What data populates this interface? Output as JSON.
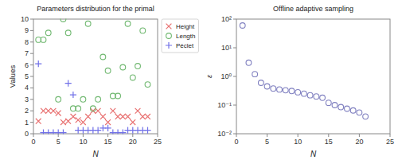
{
  "chart_data": [
    {
      "type": "scatter",
      "title": "Parameters distribution for the primal",
      "x_label": "N",
      "y_label": "Values",
      "xlim": [
        0,
        25
      ],
      "ylim": [
        0,
        10
      ],
      "xticks": [
        0,
        5,
        10,
        15,
        20,
        25
      ],
      "yticks": [
        0,
        1,
        2,
        3,
        4,
        5,
        6,
        7,
        8,
        9,
        10
      ],
      "grid": false,
      "legend": "upper right",
      "series": [
        {
          "name": "Height",
          "color": "#e87070",
          "marker": "x",
          "x": [
            1,
            2,
            3,
            4,
            5,
            6,
            7,
            8,
            9,
            10,
            11,
            12,
            13,
            14,
            15,
            16,
            17,
            18,
            19,
            20,
            21,
            22,
            23
          ],
          "values": [
            1.1,
            2.0,
            2.0,
            2.0,
            1.8,
            1.0,
            1.1,
            1.5,
            1.2,
            1.0,
            1.5,
            2.0,
            2.0,
            1.5,
            1.0,
            2.0,
            1.5,
            1.5,
            1.5,
            1.0,
            2.0,
            1.5,
            1.5
          ]
        },
        {
          "name": "Length",
          "color": "#70b870",
          "marker": "circle",
          "x": [
            1,
            2,
            3,
            5,
            6,
            7,
            8,
            9,
            10,
            11,
            12,
            13,
            14,
            15,
            16,
            17,
            18,
            19,
            20,
            21,
            22,
            23
          ],
          "values": [
            8.2,
            8.2,
            8.8,
            3.0,
            10.0,
            8.8,
            2.2,
            2.2,
            3.0,
            9.6,
            2.2,
            3.0,
            6.7,
            5.5,
            3.3,
            3.3,
            5.8,
            9.6,
            4.9,
            5.9,
            9.0,
            4.3
          ]
        },
        {
          "name": "Péclet",
          "color": "#7070e8",
          "marker": "plus",
          "x": [
            1,
            2,
            3,
            4,
            5,
            6,
            7,
            8,
            9,
            10,
            11,
            12,
            13,
            14,
            15,
            16,
            17,
            18,
            19,
            20,
            21,
            22,
            23
          ],
          "values": [
            6.1,
            0.1,
            0.1,
            0.1,
            0.1,
            0.1,
            4.4,
            3.4,
            0.3,
            0.3,
            0.3,
            0.3,
            0.3,
            0.5,
            0.5,
            0.1,
            0.1,
            0.1,
            0.3,
            0.3,
            0.3,
            0.3,
            0.3
          ]
        }
      ]
    },
    {
      "type": "scatter",
      "title": "Offline adaptive sampling",
      "x_label": "N",
      "y_label": "ε",
      "xlim": [
        0,
        25
      ],
      "ylim": [
        0.01,
        100
      ],
      "log": "y",
      "xticks": [
        0,
        5,
        10,
        15,
        20,
        25
      ],
      "yticks": [
        {
          "value": 0.01,
          "label": "10⁻²"
        },
        {
          "value": 0.1,
          "label": "10⁻¹"
        },
        {
          "value": 1,
          "label": "10⁰"
        },
        {
          "value": 10,
          "label": "10¹"
        },
        {
          "value": 100,
          "label": "10²"
        }
      ],
      "grid": false,
      "series": [
        {
          "color": "#8080c0",
          "marker": "circle",
          "x": [
            1,
            2,
            3,
            4,
            5,
            6,
            7,
            8,
            9,
            10,
            11,
            12,
            13,
            14,
            15,
            16,
            17,
            18,
            19,
            20,
            21
          ],
          "values": [
            60,
            3.0,
            1.2,
            0.6,
            0.45,
            0.38,
            0.35,
            0.33,
            0.31,
            0.28,
            0.25,
            0.22,
            0.2,
            0.18,
            0.12,
            0.1,
            0.085,
            0.075,
            0.065,
            0.055,
            0.04
          ]
        }
      ]
    }
  ]
}
